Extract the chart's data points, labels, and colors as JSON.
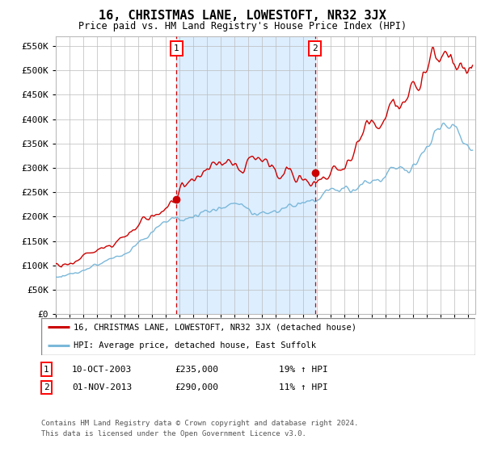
{
  "title": "16, CHRISTMAS LANE, LOWESTOFT, NR32 3JX",
  "subtitle": "Price paid vs. HM Land Registry's House Price Index (HPI)",
  "legend_line1": "16, CHRISTMAS LANE, LOWESTOFT, NR32 3JX (detached house)",
  "legend_line2": "HPI: Average price, detached house, East Suffolk",
  "annotation1_label": "1",
  "annotation1_date": "10-OCT-2003",
  "annotation1_price": "£235,000",
  "annotation1_hpi": "19% ↑ HPI",
  "annotation2_label": "2",
  "annotation2_date": "01-NOV-2013",
  "annotation2_price": "£290,000",
  "annotation2_hpi": "11% ↑ HPI",
  "sale1_year": 2003.78,
  "sale1_value": 235000,
  "sale2_year": 2013.84,
  "sale2_value": 290000,
  "ylim_min": 0,
  "ylim_max": 570000,
  "xlim_min": 1995.0,
  "xlim_max": 2025.5,
  "hpi_color": "#7ab8d9",
  "property_color": "#cc0000",
  "shading_color": "#ddeeff",
  "vline_color": "#cc0000",
  "grid_color": "#bbbbbb",
  "background_color": "#ffffff",
  "footnote_line1": "Contains HM Land Registry data © Crown copyright and database right 2024.",
  "footnote_line2": "This data is licensed under the Open Government Licence v3.0."
}
